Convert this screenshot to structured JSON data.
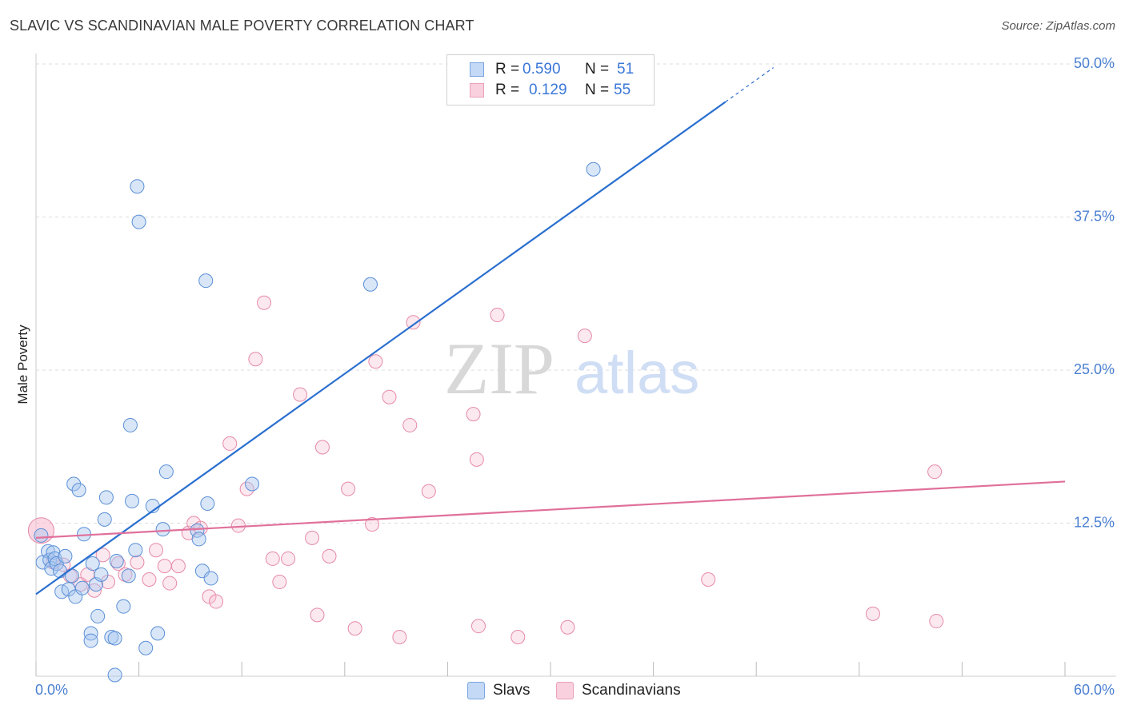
{
  "title": "SLAVIC VS SCANDINAVIAN MALE POVERTY CORRELATION CHART",
  "source": "Source: ZipAtlas.com",
  "watermark": {
    "zip": "ZIP",
    "atlas": "atlas"
  },
  "legend_top": {
    "rows": [
      {
        "r_label": "R =",
        "r_value": "0.590",
        "n_label": "N =",
        "n_value": "51",
        "color": "#a9c7f0"
      },
      {
        "r_label": "R =",
        "r_value": "0.129",
        "n_label": "N =",
        "n_value": "55",
        "color": "#f6bcd0"
      }
    ]
  },
  "legend_bottom": {
    "slavs": "Slavs",
    "scandinavians": "Scandinavians"
  },
  "colors": {
    "slavs_fill": "#a9c7f0",
    "slavs_stroke": "#5b8fd6",
    "slavs_line": "#2a6fd0",
    "scand_fill": "#f6bcd0",
    "scand_stroke": "#e58aa9",
    "scand_line": "#e0709a",
    "tick_text": "#4a7fd1",
    "grid": "#dddddd"
  },
  "chart_data": {
    "type": "scatter",
    "title": "SLAVIC VS SCANDINAVIAN MALE POVERTY CORRELATION CHART",
    "xlabel": "",
    "ylabel": "Male Poverty",
    "xlim": [
      0,
      60
    ],
    "ylim": [
      0,
      50
    ],
    "x_tick_labels": [
      "0.0%",
      "60.0%"
    ],
    "y_ticks": [
      12.5,
      25.0,
      37.5,
      50.0
    ],
    "y_tick_labels": [
      "12.5%",
      "25.0%",
      "37.5%",
      "50.0%"
    ],
    "grid": "horizontal dashed",
    "legend_position": "top-center",
    "series": [
      {
        "name": "Slavs",
        "points": [
          [
            0.3,
            11.5
          ],
          [
            0.4,
            9.3
          ],
          [
            0.7,
            10.2
          ],
          [
            0.8,
            9.5
          ],
          [
            0.9,
            8.8
          ],
          [
            1.0,
            10.1
          ],
          [
            1.1,
            9.6
          ],
          [
            1.2,
            9.2
          ],
          [
            1.4,
            8.6
          ],
          [
            1.5,
            6.9
          ],
          [
            1.7,
            9.8
          ],
          [
            1.9,
            7.1
          ],
          [
            2.1,
            8.2
          ],
          [
            2.2,
            15.7
          ],
          [
            2.3,
            6.5
          ],
          [
            2.5,
            15.2
          ],
          [
            2.7,
            7.2
          ],
          [
            2.8,
            11.6
          ],
          [
            3.2,
            3.5
          ],
          [
            3.2,
            2.9
          ],
          [
            3.3,
            9.2
          ],
          [
            3.5,
            7.5
          ],
          [
            3.6,
            4.9
          ],
          [
            3.8,
            8.3
          ],
          [
            4.0,
            12.8
          ],
          [
            4.1,
            14.6
          ],
          [
            4.4,
            3.2
          ],
          [
            4.6,
            3.1
          ],
          [
            4.6,
            0.1
          ],
          [
            4.7,
            9.4
          ],
          [
            5.1,
            5.7
          ],
          [
            5.4,
            8.2
          ],
          [
            5.5,
            20.5
          ],
          [
            5.6,
            14.3
          ],
          [
            5.8,
            10.3
          ],
          [
            5.9,
            40.0
          ],
          [
            6.0,
            37.1
          ],
          [
            6.4,
            2.3
          ],
          [
            6.8,
            13.9
          ],
          [
            7.1,
            3.5
          ],
          [
            7.4,
            12.0
          ],
          [
            7.6,
            16.7
          ],
          [
            9.4,
            11.9
          ],
          [
            9.5,
            11.2
          ],
          [
            9.7,
            8.6
          ],
          [
            9.9,
            32.3
          ],
          [
            10.0,
            14.1
          ],
          [
            10.2,
            8.0
          ],
          [
            12.6,
            15.7
          ],
          [
            19.5,
            32.0
          ],
          [
            32.5,
            41.4
          ]
        ],
        "trend": {
          "x": [
            0,
            40.2
          ],
          "y": [
            6.7,
            46.9
          ],
          "dashed_extension": {
            "x": [
              40.2,
              43.0
            ],
            "y": [
              46.9,
              49.7
            ]
          }
        }
      },
      {
        "name": "Scandinavians",
        "points": [
          [
            0.3,
            11.9
          ],
          [
            1.0,
            9.3
          ],
          [
            1.6,
            9.1
          ],
          [
            2.0,
            8.2
          ],
          [
            2.6,
            7.5
          ],
          [
            3.0,
            8.3
          ],
          [
            3.4,
            7.0
          ],
          [
            3.9,
            9.9
          ],
          [
            4.2,
            7.7
          ],
          [
            4.8,
            9.2
          ],
          [
            5.2,
            8.3
          ],
          [
            5.9,
            9.3
          ],
          [
            6.6,
            7.9
          ],
          [
            7.0,
            10.3
          ],
          [
            7.5,
            9.0
          ],
          [
            7.8,
            7.6
          ],
          [
            8.3,
            9.0
          ],
          [
            8.9,
            11.7
          ],
          [
            9.2,
            12.5
          ],
          [
            9.6,
            12.1
          ],
          [
            10.1,
            6.5
          ],
          [
            10.5,
            6.1
          ],
          [
            11.3,
            19.0
          ],
          [
            11.8,
            12.3
          ],
          [
            12.3,
            15.3
          ],
          [
            12.8,
            25.9
          ],
          [
            13.3,
            30.5
          ],
          [
            13.8,
            9.6
          ],
          [
            14.2,
            7.7
          ],
          [
            14.7,
            9.6
          ],
          [
            15.4,
            23.0
          ],
          [
            16.1,
            11.3
          ],
          [
            16.4,
            5.0
          ],
          [
            16.7,
            18.7
          ],
          [
            17.1,
            9.8
          ],
          [
            18.2,
            15.3
          ],
          [
            18.6,
            3.9
          ],
          [
            19.6,
            12.4
          ],
          [
            19.8,
            25.7
          ],
          [
            20.6,
            22.8
          ],
          [
            21.2,
            3.2
          ],
          [
            21.8,
            20.5
          ],
          [
            22.0,
            28.9
          ],
          [
            22.9,
            15.1
          ],
          [
            25.5,
            21.4
          ],
          [
            25.7,
            17.7
          ],
          [
            25.8,
            4.1
          ],
          [
            26.9,
            29.5
          ],
          [
            28.1,
            3.2
          ],
          [
            31.0,
            4.0
          ],
          [
            32.0,
            27.8
          ],
          [
            39.2,
            7.9
          ],
          [
            48.8,
            5.1
          ],
          [
            52.4,
            16.7
          ],
          [
            52.5,
            4.5
          ]
        ],
        "trend": {
          "x": [
            0,
            60
          ],
          "y": [
            11.3,
            15.9
          ]
        }
      }
    ]
  }
}
